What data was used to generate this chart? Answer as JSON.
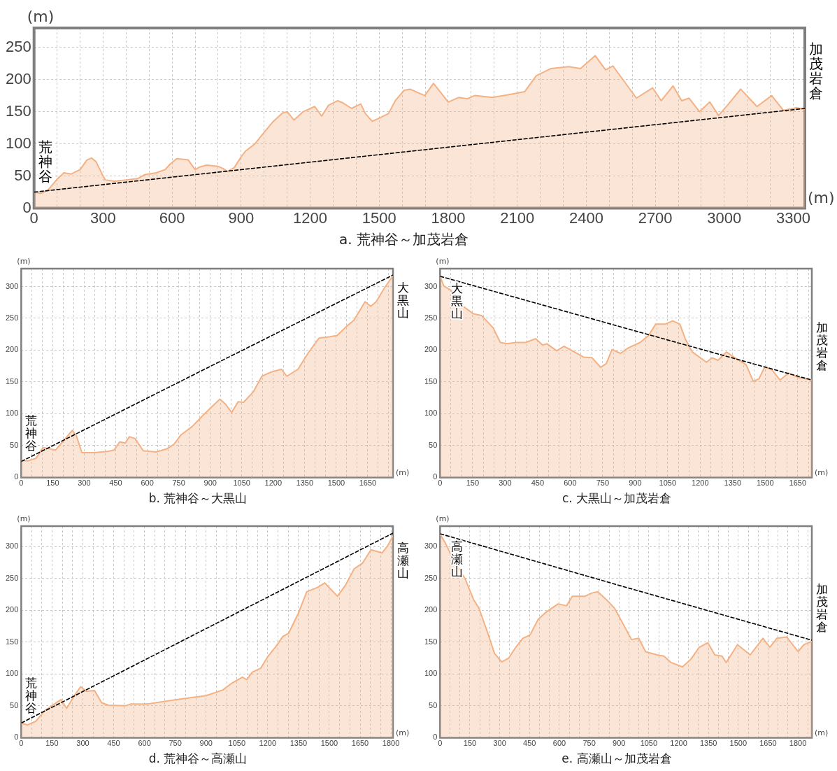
{
  "chart_data": [
    {
      "type": "area",
      "title": "a. 荒神谷～加茂岩倉",
      "xlabel": "(m)",
      "ylabel": "(m)",
      "xlim": [
        0,
        3350
      ],
      "ylim": [
        0,
        280
      ],
      "grid": true,
      "legend": false,
      "xticks": [
        0,
        {
          "value": 100,
          "label": null
        },
        {
          "value": 200,
          "label": null
        },
        300,
        {
          "value": 400,
          "label": null
        },
        {
          "value": 500,
          "label": null
        },
        600,
        {
          "value": 700,
          "label": null
        },
        {
          "value": 800,
          "label": null
        },
        900,
        {
          "value": 1000,
          "label": null
        },
        {
          "value": 1100,
          "label": null
        },
        1200,
        {
          "value": 1300,
          "label": null
        },
        {
          "value": 1400,
          "label": null
        },
        1500,
        {
          "value": 1600,
          "label": null
        },
        {
          "value": 1700,
          "label": null
        },
        1800,
        {
          "value": 1900,
          "label": null
        },
        {
          "value": 2000,
          "label": null
        },
        2100,
        {
          "value": 2200,
          "label": null
        },
        {
          "value": 2300,
          "label": null
        },
        2400,
        {
          "value": 2500,
          "label": null
        },
        {
          "value": 2600,
          "label": null
        },
        2700,
        {
          "value": 2800,
          "label": null
        },
        {
          "value": 2900,
          "label": null
        },
        3000,
        {
          "value": 3100,
          "label": null
        },
        {
          "value": 3200,
          "label": null
        },
        3300
      ],
      "yticks": [
        0,
        50,
        100,
        150,
        200,
        250
      ],
      "annotations": [
        "荒神谷",
        "加茂岩倉"
      ],
      "series": [
        {
          "type": "area",
          "color": "#f4b183",
          "x": [
            0,
            30,
            60,
            100,
            130,
            160,
            200,
            230,
            250,
            270,
            300,
            310,
            350,
            400,
            450,
            480,
            530,
            570,
            590,
            620,
            650,
            670,
            700,
            720,
            750,
            800,
            820,
            840,
            870,
            900,
            920,
            960,
            1000,
            1040,
            1080,
            1100,
            1130,
            1170,
            1220,
            1250,
            1280,
            1320,
            1340,
            1380,
            1420,
            1440,
            1470,
            1500,
            1540,
            1570,
            1608,
            1634,
            1698,
            1736,
            1800,
            1845,
            1883,
            1915,
            1992,
            2056,
            2132,
            2183,
            2247,
            2324,
            2375,
            2439,
            2484,
            2516,
            2618,
            2688,
            2726,
            2777,
            2815,
            2847,
            2892,
            2937,
            2975,
            3014,
            3071,
            3142,
            3206,
            3257,
            3313,
            3350
          ],
          "values": [
            25,
            23,
            28,
            45,
            55,
            53,
            60,
            75,
            78,
            72,
            50,
            44,
            42,
            44,
            46,
            52,
            55,
            60,
            68,
            77,
            76,
            75,
            60,
            64,
            67,
            65,
            62,
            57,
            63,
            80,
            89,
            100,
            118,
            135,
            148,
            150,
            137,
            150,
            158,
            143,
            160,
            167,
            164,
            155,
            162,
            147,
            135,
            140,
            147,
            167,
            183,
            185,
            175,
            194,
            165,
            172,
            170,
            175,
            172,
            176,
            181,
            206,
            217,
            220,
            217,
            237,
            215,
            221,
            171,
            187,
            167,
            190,
            167,
            171,
            150,
            165,
            144,
            160,
            185,
            158,
            175,
            152,
            156,
            154
          ]
        },
        {
          "type": "line",
          "color": "#000000",
          "line_style": "dashed",
          "x": [
            0,
            1675,
            3350
          ],
          "values": [
            25,
            90,
            155
          ]
        }
      ]
    },
    {
      "type": "area",
      "title": "b. 荒神谷～大黒山",
      "xlabel": "(m)",
      "ylabel": "(m)",
      "xlim": [
        0,
        1770
      ],
      "ylim": [
        0,
        328
      ],
      "grid": true,
      "legend": false,
      "xticks": [
        0,
        {
          "value": 50,
          "label": null
        },
        {
          "value": 100,
          "label": null
        },
        150,
        {
          "value": 200,
          "label": null
        },
        {
          "value": 250,
          "label": null
        },
        300,
        {
          "value": 350,
          "label": null
        },
        {
          "value": 400,
          "label": null
        },
        450,
        {
          "value": 500,
          "label": null
        },
        {
          "value": 550,
          "label": null
        },
        600,
        {
          "value": 650,
          "label": null
        },
        {
          "value": 700,
          "label": null
        },
        750,
        {
          "value": 800,
          "label": null
        },
        {
          "value": 850,
          "label": null
        },
        900,
        {
          "value": 950,
          "label": null
        },
        {
          "value": 1000,
          "label": null
        },
        1050,
        {
          "value": 1100,
          "label": null
        },
        {
          "value": 1150,
          "label": null
        },
        1200,
        {
          "value": 1250,
          "label": null
        },
        {
          "value": 1300,
          "label": null
        },
        1350,
        {
          "value": 1400,
          "label": null
        },
        {
          "value": 1450,
          "label": null
        },
        1500,
        {
          "value": 1550,
          "label": null
        },
        {
          "value": 1600,
          "label": null
        },
        1650,
        {
          "value": 1700,
          "label": null
        },
        {
          "value": 1750,
          "label": null
        }
      ],
      "yticks": [
        0,
        50,
        100,
        150,
        200,
        250,
        300
      ],
      "annotations": [
        "荒神谷",
        "大黒山"
      ],
      "series": [
        {
          "type": "area",
          "color": "#f4b183",
          "x": [
            0,
            31,
            70,
            104,
            163,
            210,
            243,
            263,
            289,
            349,
            415,
            442,
            469,
            495,
            515,
            542,
            581,
            641,
            694,
            727,
            761,
            814,
            867,
            907,
            946,
            973,
            1002,
            1033,
            1059,
            1106,
            1146,
            1185,
            1239,
            1265,
            1318,
            1365,
            1418,
            1471,
            1504,
            1551,
            1584,
            1637,
            1664,
            1690,
            1730,
            1770
          ],
          "values": [
            27,
            26,
            30,
            47,
            43,
            61,
            74,
            65,
            39,
            39,
            41,
            43,
            56,
            54,
            64,
            61,
            42,
            40,
            45,
            52,
            67,
            80,
            98,
            111,
            123,
            115,
            102,
            119,
            118,
            135,
            159,
            165,
            170,
            159,
            170,
            195,
            219,
            221,
            223,
            238,
            247,
            276,
            269,
            276,
            298,
            317
          ]
        },
        {
          "type": "line",
          "color": "#000000",
          "line_style": "dashed",
          "x": [
            0,
            885,
            1770
          ],
          "values": [
            25,
            172,
            318
          ]
        }
      ]
    },
    {
      "type": "area",
      "title": "c. 大黒山～加茂岩倉",
      "xlabel": "(m)",
      "ylabel": "(m)",
      "xlim": [
        0,
        1715
      ],
      "ylim": [
        0,
        328
      ],
      "grid": true,
      "legend": false,
      "xticks": [
        0,
        {
          "value": 50,
          "label": null
        },
        {
          "value": 100,
          "label": null
        },
        150,
        {
          "value": 200,
          "label": null
        },
        {
          "value": 250,
          "label": null
        },
        300,
        {
          "value": 350,
          "label": null
        },
        {
          "value": 400,
          "label": null
        },
        450,
        {
          "value": 500,
          "label": null
        },
        {
          "value": 550,
          "label": null
        },
        600,
        {
          "value": 650,
          "label": null
        },
        {
          "value": 700,
          "label": null
        },
        750,
        {
          "value": 800,
          "label": null
        },
        {
          "value": 850,
          "label": null
        },
        900,
        {
          "value": 950,
          "label": null
        },
        {
          "value": 1000,
          "label": null
        },
        1050,
        {
          "value": 1100,
          "label": null
        },
        {
          "value": 1150,
          "label": null
        },
        1200,
        {
          "value": 1250,
          "label": null
        },
        {
          "value": 1300,
          "label": null
        },
        1350,
        {
          "value": 1400,
          "label": null
        },
        {
          "value": 1450,
          "label": null
        },
        1500,
        {
          "value": 1550,
          "label": null
        },
        {
          "value": 1600,
          "label": null
        },
        1650,
        {
          "value": 1700,
          "label": null
        }
      ],
      "yticks": [
        0,
        50,
        100,
        150,
        200,
        250,
        300
      ],
      "annotations": [
        "大黒山",
        "加茂岩倉"
      ],
      "series": [
        {
          "type": "area",
          "color": "#f4b183",
          "x": [
            0,
            17,
            50,
            102,
            154,
            193,
            245,
            278,
            310,
            349,
            395,
            441,
            473,
            493,
            538,
            571,
            610,
            662,
            701,
            741,
            767,
            793,
            832,
            871,
            923,
            962,
            995,
            1040,
            1073,
            1106,
            1132,
            1164,
            1229,
            1255,
            1282,
            1321,
            1360,
            1412,
            1445,
            1471,
            1497,
            1529,
            1568,
            1608,
            1653,
            1715
          ],
          "values": [
            316,
            301,
            294,
            270,
            257,
            254,
            235,
            212,
            210,
            212,
            212,
            218,
            208,
            210,
            199,
            206,
            199,
            189,
            188,
            173,
            179,
            201,
            195,
            204,
            212,
            223,
            241,
            241,
            246,
            241,
            217,
            197,
            181,
            188,
            184,
            197,
            188,
            177,
            151,
            155,
            173,
            170,
            153,
            164,
            157,
            153
          ]
        },
        {
          "type": "line",
          "color": "#000000",
          "line_style": "dashed",
          "x": [
            0,
            860,
            1715
          ],
          "values": [
            316,
            234,
            153
          ]
        }
      ]
    },
    {
      "type": "area",
      "title": "d. 荒神谷～高瀬山",
      "xlabel": "(m)",
      "ylabel": "(m)",
      "xlim": [
        0,
        1810
      ],
      "ylim": [
        0,
        332
      ],
      "grid": true,
      "legend": false,
      "xticks": [
        0,
        {
          "value": 50,
          "label": null
        },
        {
          "value": 100,
          "label": null
        },
        150,
        {
          "value": 200,
          "label": null
        },
        {
          "value": 250,
          "label": null
        },
        300,
        {
          "value": 350,
          "label": null
        },
        {
          "value": 400,
          "label": null
        },
        450,
        {
          "value": 500,
          "label": null
        },
        {
          "value": 550,
          "label": null
        },
        600,
        {
          "value": 650,
          "label": null
        },
        {
          "value": 700,
          "label": null
        },
        750,
        {
          "value": 800,
          "label": null
        },
        {
          "value": 850,
          "label": null
        },
        900,
        {
          "value": 950,
          "label": null
        },
        {
          "value": 1000,
          "label": null
        },
        1050,
        {
          "value": 1100,
          "label": null
        },
        {
          "value": 1150,
          "label": null
        },
        1200,
        {
          "value": 1250,
          "label": null
        },
        {
          "value": 1300,
          "label": null
        },
        1350,
        {
          "value": 1400,
          "label": null
        },
        {
          "value": 1450,
          "label": null
        },
        1500,
        {
          "value": 1550,
          "label": null
        },
        {
          "value": 1600,
          "label": null
        },
        1650,
        {
          "value": 1700,
          "label": null
        },
        {
          "value": 1750,
          "label": null
        },
        1800
      ],
      "yticks": [
        0,
        50,
        100,
        150,
        200,
        250,
        300
      ],
      "annotations": [
        "荒神谷",
        "高瀬山"
      ],
      "series": [
        {
          "type": "area",
          "color": "#f4b183",
          "x": [
            0,
            31,
            72,
            113,
            194,
            221,
            255,
            289,
            317,
            357,
            391,
            425,
            507,
            534,
            615,
            738,
            806,
            901,
            982,
            1023,
            1077,
            1098,
            1125,
            1166,
            1200,
            1240,
            1274,
            1302,
            1349,
            1390,
            1444,
            1478,
            1519,
            1540,
            1580,
            1621,
            1662,
            1703,
            1757,
            1784,
            1810
          ],
          "values": [
            23,
            20,
            26,
            42,
            60,
            46,
            64,
            80,
            73,
            74,
            55,
            51,
            50,
            53,
            53,
            59,
            62,
            66,
            75,
            85,
            95,
            91,
            103,
            109,
            127,
            143,
            159,
            164,
            195,
            229,
            236,
            243,
            229,
            222,
            240,
            265,
            274,
            295,
            290,
            301,
            317
          ]
        },
        {
          "type": "line",
          "color": "#000000",
          "line_style": "dashed",
          "x": [
            0,
            905,
            1810
          ],
          "values": [
            23,
            172,
            321
          ]
        }
      ]
    },
    {
      "type": "area",
      "title": "e. 高瀬山～加茂岩倉",
      "xlabel": "(m)",
      "ylabel": "(m)",
      "xlim": [
        0,
        1870
      ],
      "ylim": [
        0,
        332
      ],
      "grid": true,
      "legend": false,
      "xticks": [
        0,
        {
          "value": 50,
          "label": null
        },
        {
          "value": 100,
          "label": null
        },
        150,
        {
          "value": 200,
          "label": null
        },
        {
          "value": 250,
          "label": null
        },
        300,
        {
          "value": 350,
          "label": null
        },
        {
          "value": 400,
          "label": null
        },
        450,
        {
          "value": 500,
          "label": null
        },
        {
          "value": 550,
          "label": null
        },
        600,
        {
          "value": 650,
          "label": null
        },
        {
          "value": 700,
          "label": null
        },
        750,
        {
          "value": 800,
          "label": null
        },
        {
          "value": 850,
          "label": null
        },
        900,
        {
          "value": 950,
          "label": null
        },
        {
          "value": 1000,
          "label": null
        },
        1050,
        {
          "value": 1100,
          "label": null
        },
        {
          "value": 1150,
          "label": null
        },
        1200,
        {
          "value": 1250,
          "label": null
        },
        {
          "value": 1300,
          "label": null
        },
        1350,
        {
          "value": 1400,
          "label": null
        },
        {
          "value": 1450,
          "label": null
        },
        1500,
        {
          "value": 1550,
          "label": null
        },
        {
          "value": 1600,
          "label": null
        },
        1650,
        {
          "value": 1700,
          "label": null
        },
        {
          "value": 1750,
          "label": null
        },
        1800,
        {
          "value": 1850,
          "label": null
        }
      ],
      "yticks": [
        0,
        50,
        100,
        150,
        200,
        250,
        300
      ],
      "annotations": [
        "高瀬山",
        "加茂岩倉"
      ],
      "series": [
        {
          "type": "area",
          "color": "#f4b183",
          "x": [
            0,
            26,
            68,
            125,
            168,
            196,
            239,
            274,
            310,
            345,
            381,
            416,
            452,
            494,
            537,
            594,
            636,
            665,
            729,
            764,
            793,
            842,
            878,
            920,
            963,
            999,
            1034,
            1091,
            1126,
            1162,
            1219,
            1261,
            1304,
            1347,
            1382,
            1418,
            1439,
            1496,
            1560,
            1624,
            1659,
            1694,
            1744,
            1801,
            1830,
            1870
          ],
          "values": [
            319,
            306,
            278,
            250,
            217,
            203,
            165,
            132,
            119,
            125,
            142,
            156,
            161,
            186,
            198,
            210,
            207,
            222,
            222,
            227,
            229,
            215,
            203,
            179,
            154,
            156,
            135,
            130,
            128,
            118,
            111,
            123,
            142,
            149,
            130,
            128,
            118,
            146,
            130,
            156,
            142,
            156,
            158,
            135,
            146,
            151
          ]
        },
        {
          "type": "line",
          "color": "#000000",
          "line_style": "dashed",
          "x": [
            0,
            935,
            1870
          ],
          "values": [
            320,
            236,
            153
          ]
        }
      ]
    }
  ]
}
